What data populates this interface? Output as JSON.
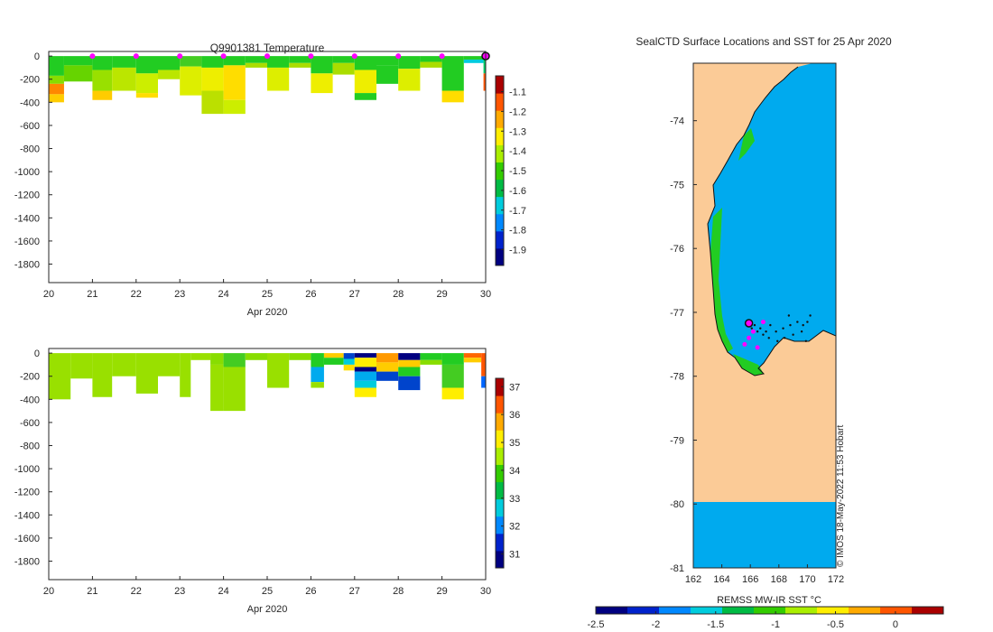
{
  "colors": {
    "land": "#FBCB97",
    "ocean": "#00AAEE",
    "marker": "#FF00FF",
    "frame": "#262626"
  },
  "chart_data": [
    {
      "id": "temperature-section",
      "type": "heatmap",
      "title": "Q9901381  Temperature",
      "xlabel": "Apr 2020",
      "ylabel": "",
      "x_ticks": [
        "20",
        "21",
        "22",
        "23",
        "24",
        "25",
        "26",
        "27",
        "28",
        "29",
        "30"
      ],
      "y_ticks": [
        "0",
        "-200",
        "-400",
        "-600",
        "-800",
        "-1000",
        "-1200",
        "-1400",
        "-1600",
        "-1800"
      ],
      "xlim": [
        20,
        30
      ],
      "ylim": [
        -1960,
        40
      ],
      "profile_days": [
        21,
        22,
        23,
        24,
        25,
        26,
        27,
        28,
        29
      ],
      "last_profile_day": 30,
      "colorbar": {
        "ticks": [
          "-1.1",
          "-1.2",
          "-1.3",
          "-1.4",
          "-1.5",
          "-1.6",
          "-1.7",
          "-1.8",
          "-1.9"
        ],
        "range": [
          -1.98,
          -1.02
        ],
        "colors": [
          "#000080",
          "#0022cc",
          "#0088ff",
          "#00ccdd",
          "#00bb44",
          "#33cc00",
          "#aaee00",
          "#ffee00",
          "#ffaa00",
          "#ff5500",
          "#aa0000"
        ]
      },
      "columns": [
        {
          "x0": 20.0,
          "x1": 20.35,
          "segs": [
            [
              -170,
              "#22cc22"
            ],
            [
              -240,
              "#88dd00"
            ],
            [
              -330,
              "#ff8800"
            ],
            [
              -400,
              "#ffcc00"
            ]
          ]
        },
        {
          "x0": 20.35,
          "x1": 21.0,
          "segs": [
            [
              -80,
              "#22cc22"
            ],
            [
              -220,
              "#66d400"
            ]
          ]
        },
        {
          "x0": 21.0,
          "x1": 21.45,
          "segs": [
            [
              -120,
              "#22cc22"
            ],
            [
              -300,
              "#99e000"
            ],
            [
              -380,
              "#ffcc00"
            ]
          ]
        },
        {
          "x0": 21.45,
          "x1": 22.0,
          "segs": [
            [
              -100,
              "#22cc22"
            ],
            [
              -300,
              "#bbe600"
            ]
          ]
        },
        {
          "x0": 22.0,
          "x1": 22.5,
          "segs": [
            [
              -150,
              "#22cc22"
            ],
            [
              -320,
              "#ccee00"
            ],
            [
              -360,
              "#ffdd00"
            ]
          ]
        },
        {
          "x0": 22.5,
          "x1": 23.0,
          "segs": [
            [
              -120,
              "#22cc22"
            ],
            [
              -200,
              "#bbe600"
            ]
          ]
        },
        {
          "x0": 23.0,
          "x1": 23.5,
          "segs": [
            [
              -90,
              "#44cc22"
            ],
            [
              -340,
              "#ddee00"
            ]
          ]
        },
        {
          "x0": 23.5,
          "x1": 24.0,
          "segs": [
            [
              -100,
              "#22cc22"
            ],
            [
              -300,
              "#eeee00"
            ],
            [
              -500,
              "#bbe000"
            ]
          ]
        },
        {
          "x0": 24.0,
          "x1": 24.5,
          "segs": [
            [
              -80,
              "#22cc22"
            ],
            [
              -380,
              "#ffdd00"
            ],
            [
              -500,
              "#ccee00"
            ]
          ]
        },
        {
          "x0": 24.5,
          "x1": 25.0,
          "segs": [
            [
              -60,
              "#22cc22"
            ],
            [
              -100,
              "#aadd00"
            ]
          ]
        },
        {
          "x0": 25.0,
          "x1": 25.5,
          "segs": [
            [
              -100,
              "#22cc22"
            ],
            [
              -300,
              "#ddee00"
            ]
          ]
        },
        {
          "x0": 25.5,
          "x1": 26.0,
          "segs": [
            [
              -60,
              "#22cc22"
            ],
            [
              -100,
              "#aadd00"
            ]
          ]
        },
        {
          "x0": 26.0,
          "x1": 26.5,
          "segs": [
            [
              -150,
              "#22cc22"
            ],
            [
              -320,
              "#eeee00"
            ]
          ]
        },
        {
          "x0": 26.5,
          "x1": 27.0,
          "segs": [
            [
              -60,
              "#22cc22"
            ],
            [
              -160,
              "#aadd00"
            ]
          ]
        },
        {
          "x0": 27.0,
          "x1": 27.5,
          "segs": [
            [
              -120,
              "#22cc22"
            ],
            [
              -320,
              "#eeee00"
            ],
            [
              -380,
              "#22cc22"
            ]
          ]
        },
        {
          "x0": 27.5,
          "x1": 28.0,
          "segs": [
            [
              -80,
              "#22cc22"
            ],
            [
              -240,
              "#22cc22"
            ]
          ]
        },
        {
          "x0": 28.0,
          "x1": 28.5,
          "segs": [
            [
              -110,
              "#22cc22"
            ],
            [
              -300,
              "#ddee00"
            ]
          ]
        },
        {
          "x0": 28.5,
          "x1": 29.0,
          "segs": [
            [
              -50,
              "#22cc22"
            ],
            [
              -100,
              "#aadd00"
            ]
          ]
        },
        {
          "x0": 29.0,
          "x1": 29.5,
          "segs": [
            [
              -300,
              "#22cc22"
            ],
            [
              -400,
              "#ffdd00"
            ]
          ]
        },
        {
          "x0": 29.5,
          "x1": 29.95,
          "segs": [
            [
              -30,
              "#22cc22"
            ],
            [
              -60,
              "#00ccdd"
            ]
          ]
        },
        {
          "x0": 29.95,
          "x1": 30.05,
          "segs": [
            [
              -150,
              "#00cc66"
            ],
            [
              -300,
              "#ff5500"
            ]
          ]
        }
      ]
    },
    {
      "id": "salinity-section",
      "type": "heatmap",
      "title": "",
      "xlabel": "Apr 2020",
      "ylabel": "",
      "x_ticks": [
        "20",
        "21",
        "22",
        "23",
        "24",
        "25",
        "26",
        "27",
        "28",
        "29",
        "30"
      ],
      "y_ticks": [
        "0",
        "-200",
        "-400",
        "-600",
        "-800",
        "-1000",
        "-1200",
        "-1400",
        "-1600",
        "-1800"
      ],
      "xlim": [
        20,
        30
      ],
      "ylim": [
        -1960,
        40
      ],
      "colorbar": {
        "ticks": [
          "37",
          "36",
          "35",
          "34",
          "33",
          "32",
          "31"
        ],
        "range": [
          30.5,
          37.3
        ],
        "colors": [
          "#000080",
          "#0022cc",
          "#0088ff",
          "#00ccdd",
          "#00bb44",
          "#33cc00",
          "#aaee00",
          "#ffee00",
          "#ffaa00",
          "#ff5500",
          "#aa0000"
        ]
      },
      "columns": [
        {
          "x0": 20.0,
          "x1": 20.5,
          "segs": [
            [
              -400,
              "#99e000"
            ]
          ]
        },
        {
          "x0": 20.5,
          "x1": 21.0,
          "segs": [
            [
              -220,
              "#99e000"
            ]
          ]
        },
        {
          "x0": 21.0,
          "x1": 21.45,
          "segs": [
            [
              -380,
              "#99e000"
            ]
          ]
        },
        {
          "x0": 21.45,
          "x1": 22.0,
          "segs": [
            [
              -200,
              "#99e000"
            ]
          ]
        },
        {
          "x0": 22.0,
          "x1": 22.5,
          "segs": [
            [
              -350,
              "#99e000"
            ]
          ]
        },
        {
          "x0": 22.5,
          "x1": 23.0,
          "segs": [
            [
              -200,
              "#99e000"
            ]
          ]
        },
        {
          "x0": 23.0,
          "x1": 23.25,
          "segs": [
            [
              -380,
              "#99e000"
            ]
          ]
        },
        {
          "x0": 23.25,
          "x1": 23.7,
          "segs": [
            [
              -60,
              "#99e000"
            ]
          ]
        },
        {
          "x0": 23.7,
          "x1": 24.0,
          "segs": [
            [
              -100,
              "#88dd00"
            ],
            [
              -500,
              "#99e000"
            ]
          ]
        },
        {
          "x0": 24.0,
          "x1": 24.5,
          "segs": [
            [
              -120,
              "#44cc22"
            ],
            [
              -500,
              "#99e000"
            ]
          ]
        },
        {
          "x0": 24.5,
          "x1": 25.0,
          "segs": [
            [
              -60,
              "#88dd00"
            ]
          ]
        },
        {
          "x0": 25.0,
          "x1": 25.5,
          "segs": [
            [
              -300,
              "#99e000"
            ]
          ]
        },
        {
          "x0": 25.5,
          "x1": 26.0,
          "segs": [
            [
              -60,
              "#88dd00"
            ]
          ]
        },
        {
          "x0": 26.0,
          "x1": 26.3,
          "segs": [
            [
              -120,
              "#22cc22"
            ],
            [
              -250,
              "#00aaee"
            ],
            [
              -300,
              "#99e000"
            ]
          ]
        },
        {
          "x0": 26.3,
          "x1": 26.75,
          "segs": [
            [
              -40,
              "#ffcc00"
            ],
            [
              -100,
              "#22cc22"
            ]
          ]
        },
        {
          "x0": 26.75,
          "x1": 27.0,
          "segs": [
            [
              -50,
              "#0044cc"
            ],
            [
              -100,
              "#00ccdd"
            ],
            [
              -150,
              "#ffdd00"
            ]
          ]
        },
        {
          "x0": 27.0,
          "x1": 27.5,
          "segs": [
            [
              -40,
              "#000080"
            ],
            [
              -120,
              "#ffee00"
            ],
            [
              -160,
              "#000080"
            ],
            [
              -240,
              "#00aaee"
            ],
            [
              -300,
              "#00ccdd"
            ],
            [
              -380,
              "#ffee00"
            ]
          ]
        },
        {
          "x0": 27.5,
          "x1": 28.0,
          "segs": [
            [
              -80,
              "#ff9900"
            ],
            [
              -160,
              "#ffcc00"
            ],
            [
              -240,
              "#0044cc"
            ]
          ]
        },
        {
          "x0": 28.0,
          "x1": 28.5,
          "segs": [
            [
              -60,
              "#000080"
            ],
            [
              -120,
              "#ffcc00"
            ],
            [
              -200,
              "#22cc22"
            ],
            [
              -320,
              "#0044cc"
            ]
          ]
        },
        {
          "x0": 28.5,
          "x1": 29.0,
          "segs": [
            [
              -60,
              "#22cc22"
            ],
            [
              -100,
              "#88dd00"
            ]
          ]
        },
        {
          "x0": 29.0,
          "x1": 29.5,
          "segs": [
            [
              -100,
              "#22cc22"
            ],
            [
              -300,
              "#44cc22"
            ],
            [
              -400,
              "#ffee00"
            ]
          ]
        },
        {
          "x0": 29.5,
          "x1": 29.9,
          "segs": [
            [
              -40,
              "#ff6600"
            ],
            [
              -80,
              "#ffcc00"
            ]
          ]
        },
        {
          "x0": 29.9,
          "x1": 30.05,
          "segs": [
            [
              -200,
              "#ff5500"
            ],
            [
              -300,
              "#0066ff"
            ]
          ]
        }
      ]
    },
    {
      "id": "sst-map",
      "type": "heatmap",
      "title": "SealCTD Surface Locations and SST for 25 Apr 2020",
      "xlabel": "",
      "ylabel": "",
      "x_ticks": [
        "162",
        "164",
        "166",
        "168",
        "170",
        "172"
      ],
      "y_ticks": [
        "-74",
        "-75",
        "-76",
        "-77",
        "-78",
        "-79",
        "-80",
        "-81"
      ],
      "xlim": [
        162,
        172
      ],
      "ylim": [
        -81,
        -73.1
      ],
      "colorbar": {
        "label": "REMSS MW-IR SST °C",
        "ticks": [
          "-2.5",
          "-2",
          "-1.5",
          "-1",
          "-0.5",
          "0"
        ],
        "range": [
          -2.5,
          0.4
        ],
        "colors": [
          "#000080",
          "#0022cc",
          "#0088ff",
          "#00ccdd",
          "#00bb44",
          "#33cc00",
          "#aaee00",
          "#ffee00",
          "#ffaa00",
          "#ff5500",
          "#aa0000"
        ]
      },
      "credit": "© IMOS 18-May-2022 11:53 Hobart",
      "current_position": [
        165.9,
        -77.17
      ],
      "track_points": [
        [
          165.8,
          -77.2
        ],
        [
          166.3,
          -77.2
        ],
        [
          166.7,
          -77.25
        ],
        [
          167.1,
          -77.3
        ],
        [
          167.4,
          -77.2
        ],
        [
          167.8,
          -77.3
        ],
        [
          168.3,
          -77.25
        ],
        [
          168.8,
          -77.2
        ],
        [
          169.3,
          -77.15
        ],
        [
          169.7,
          -77.2
        ],
        [
          170.0,
          -77.15
        ],
        [
          169.6,
          -77.3
        ],
        [
          169.0,
          -77.35
        ],
        [
          168.4,
          -77.4
        ],
        [
          167.9,
          -77.45
        ],
        [
          167.3,
          -77.4
        ],
        [
          166.9,
          -77.35
        ],
        [
          166.5,
          -77.3
        ],
        [
          166.1,
          -77.25
        ],
        [
          170.2,
          -77.05
        ],
        [
          169.9,
          -77.45
        ],
        [
          168.7,
          -77.05
        ]
      ],
      "marker_points": [
        [
          165.9,
          -77.4
        ],
        [
          165.6,
          -77.5
        ],
        [
          166.2,
          -77.3
        ],
        [
          166.9,
          -77.15
        ],
        [
          166.5,
          -77.55
        ]
      ]
    }
  ]
}
